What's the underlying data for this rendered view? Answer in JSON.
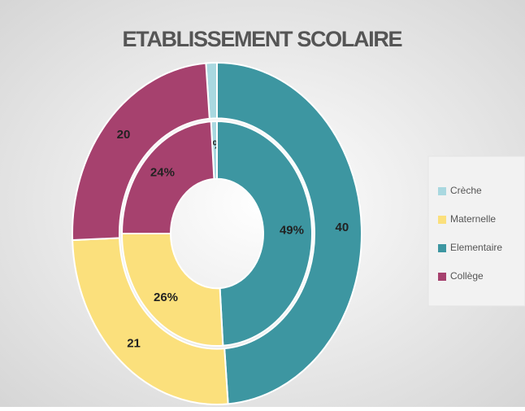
{
  "chart_data": {
    "type": "doughnut",
    "title": "ETABLISSEMENT SCOLAIRE",
    "categories": [
      "Crèche",
      "Elementaire",
      "Maternelle",
      "Collège"
    ],
    "colors": [
      "#a9d8e0",
      "#3d96a1",
      "#fbe07c",
      "#a6416e"
    ],
    "series": [
      {
        "values": [
          1,
          40,
          21,
          20
        ],
        "value_labels": [
          null,
          "40",
          "21",
          "20"
        ]
      },
      {
        "values": [
          1,
          49,
          26,
          24
        ],
        "value_labels": [
          "1%",
          "49%",
          "26%",
          "24%"
        ]
      }
    ],
    "legend": "right"
  }
}
